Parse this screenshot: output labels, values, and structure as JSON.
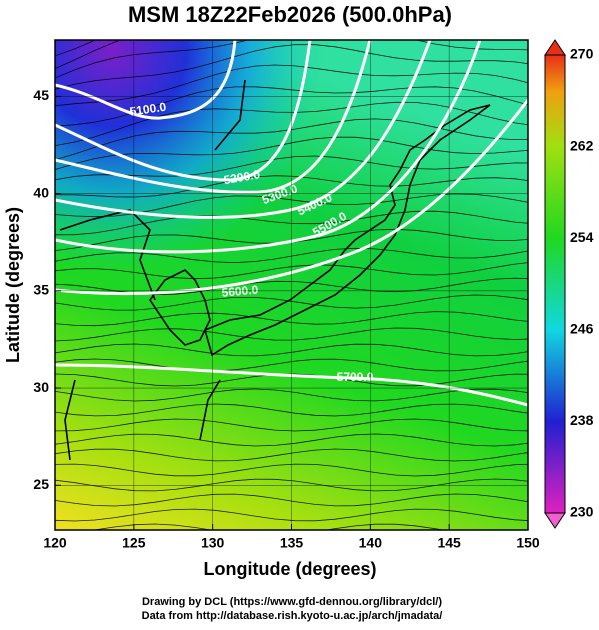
{
  "title": "MSM 18Z22Feb2026 (500.0hPa)",
  "x_label": "Longitude (degrees)",
  "y_label": "Latitude  (degrees)",
  "xlim": [
    120,
    150
  ],
  "xticks": [
    120,
    125,
    130,
    135,
    140,
    145,
    150
  ],
  "ylim": [
    22.7,
    47.9
  ],
  "yticks": [
    25,
    30,
    35,
    40,
    45
  ],
  "colorbar": {
    "lim": [
      230,
      270
    ],
    "ticks": [
      230,
      238,
      246,
      254,
      262,
      270
    ]
  },
  "contour_labels": [
    "5100.0",
    "5200.0",
    "5300.0",
    "5400.0",
    "5500.0",
    "5600.0",
    "5700.0"
  ],
  "credits": [
    "Drawing by DCL (https://www.gfd-dennou.org/library/dcl/)",
    "Data from http://database.rish.kyoto-u.ac.jp/arch/jmadata/"
  ]
}
